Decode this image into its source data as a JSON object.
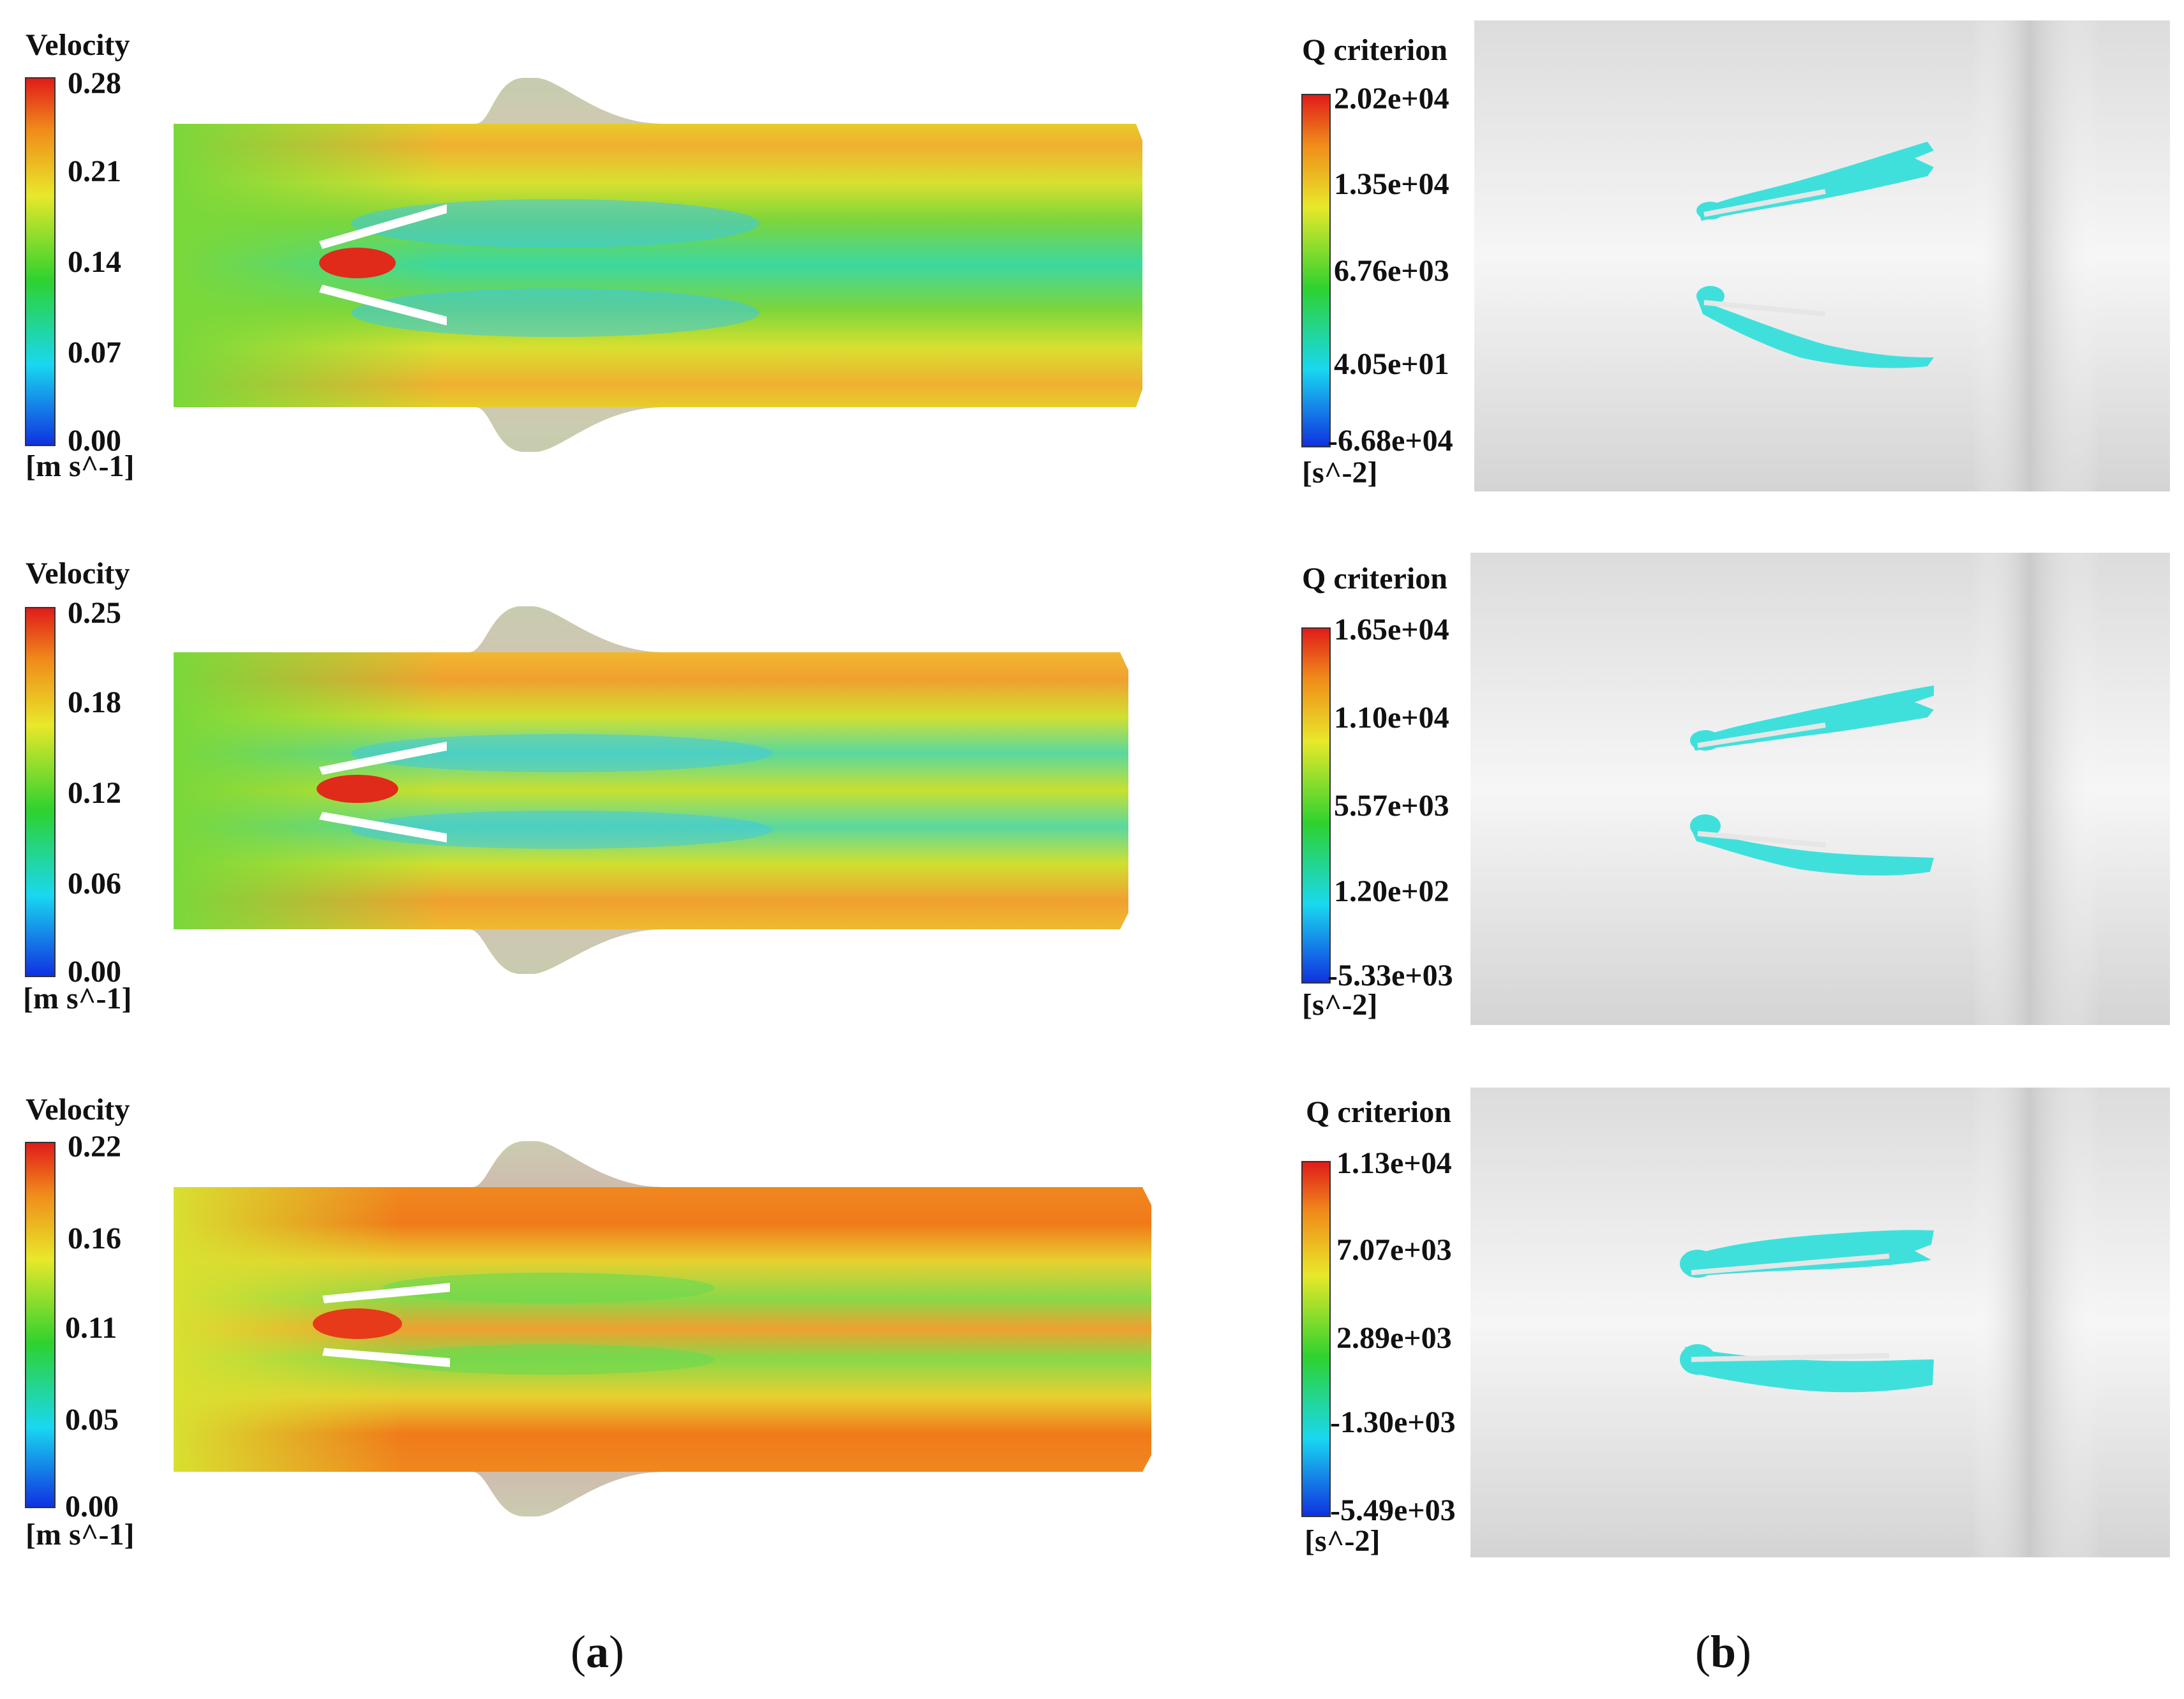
{
  "figure": {
    "captions": {
      "a": "a",
      "b": "b"
    },
    "rows": [
      {
        "velocity": {
          "title": "Velocity",
          "unit": "[m s^-1]",
          "ticks": [
            "0.28",
            "0.21",
            "0.14",
            "0.07",
            "0.00"
          ]
        },
        "qcriterion": {
          "title": "Q criterion",
          "unit": "[s^-2]",
          "ticks": [
            "2.02e+04",
            "1.35e+04",
            "6.76e+03",
            "4.05e+01",
            "-6.68e+04"
          ]
        }
      },
      {
        "velocity": {
          "title": "Velocity",
          "unit": "[m s^-1]",
          "ticks": [
            "0.25",
            "0.18",
            "0.12",
            "0.06",
            "0.00"
          ]
        },
        "qcriterion": {
          "title": "Q criterion",
          "unit": "[s^-2]",
          "ticks": [
            "1.65e+04",
            "1.10e+04",
            "5.57e+03",
            "1.20e+02",
            "-5.33e+03"
          ]
        }
      },
      {
        "velocity": {
          "title": "Velocity",
          "unit": "[m s^-1]",
          "ticks": [
            "0.22",
            "0.16",
            "0.11",
            "0.05",
            "0.00"
          ]
        },
        "qcriterion": {
          "title": "Q criterion",
          "unit": "[s^-2]",
          "ticks": [
            "1.13e+04",
            "7.07e+03",
            "2.89e+03",
            "-1.30e+03",
            "-5.49e+03"
          ]
        }
      }
    ]
  },
  "colors": {
    "colormap": [
      "#1030e0",
      "#19d8f0",
      "#2ed22e",
      "#e8e82a",
      "#f08a1a",
      "#e01a1a"
    ],
    "vortex": "#3fe0dc",
    "background_gray": "#d9d9d9"
  }
}
